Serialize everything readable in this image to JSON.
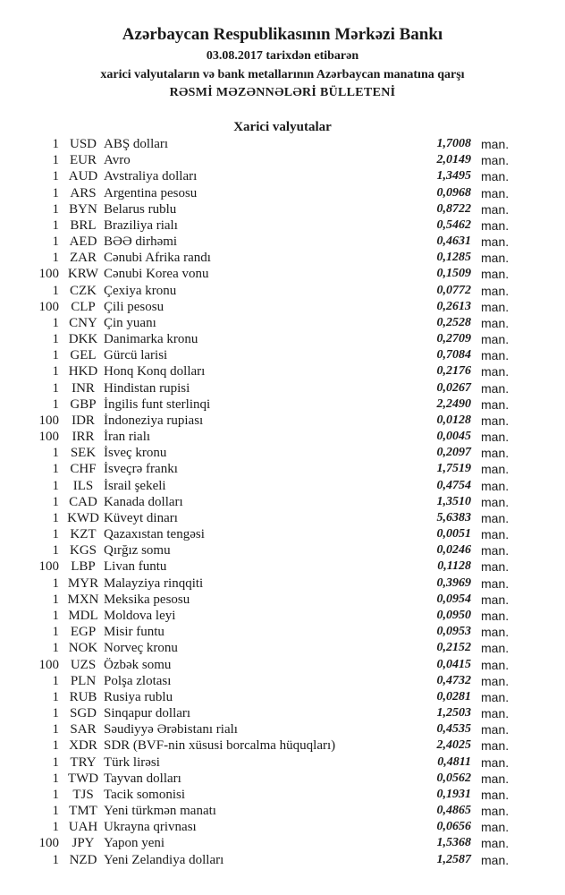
{
  "header": {
    "title": "Azərbaycan Respublikasının Mərkəzi Bankı",
    "date_line": "03.08.2017 tarixdən etibarən",
    "subtitle": "xarici valyutaların və bank metallarının Azərbaycan manatına qarşı",
    "bulletin": "RƏSMİ MƏZƏNNƏLƏRİ BÜLLETENİ"
  },
  "section_title": "Xarici valyutalar",
  "unit": "man.",
  "rows": [
    {
      "amount": "1",
      "code": "USD",
      "name": "ABŞ dolları",
      "rate": "1,7008"
    },
    {
      "amount": "1",
      "code": "EUR",
      "name": "Avro",
      "rate": "2,0149"
    },
    {
      "amount": "1",
      "code": "AUD",
      "name": "Avstraliya dolları",
      "rate": "1,3495"
    },
    {
      "amount": "1",
      "code": "ARS",
      "name": "Argentina pesosu",
      "rate": "0,0968"
    },
    {
      "amount": "1",
      "code": "BYN",
      "name": "Belarus rublu",
      "rate": "0,8722"
    },
    {
      "amount": "1",
      "code": "BRL",
      "name": "Braziliya rialı",
      "rate": "0,5462"
    },
    {
      "amount": "1",
      "code": "AED",
      "name": "BƏƏ dirhəmi",
      "rate": "0,4631"
    },
    {
      "amount": "1",
      "code": "ZAR",
      "name": "Cənubi Afrika randı",
      "rate": "0,1285"
    },
    {
      "amount": "100",
      "code": "KRW",
      "name": "Cənubi Korea vonu",
      "rate": "0,1509"
    },
    {
      "amount": "1",
      "code": "CZK",
      "name": "Çexiya kronu",
      "rate": "0,0772"
    },
    {
      "amount": "100",
      "code": "CLP",
      "name": "Çili pesosu",
      "rate": "0,2613"
    },
    {
      "amount": "1",
      "code": "CNY",
      "name": "Çin yuanı",
      "rate": "0,2528"
    },
    {
      "amount": "1",
      "code": "DKK",
      "name": "Danimarka kronu",
      "rate": "0,2709"
    },
    {
      "amount": "1",
      "code": "GEL",
      "name": "Gürcü larisi",
      "rate": "0,7084"
    },
    {
      "amount": "1",
      "code": "HKD",
      "name": "Honq Konq dolları",
      "rate": "0,2176"
    },
    {
      "amount": "1",
      "code": "INR",
      "name": "Hindistan rupisi",
      "rate": "0,0267"
    },
    {
      "amount": "1",
      "code": "GBP",
      "name": "İngilis funt sterlinqi",
      "rate": "2,2490"
    },
    {
      "amount": "100",
      "code": "IDR",
      "name": "İndoneziya rupiası",
      "rate": "0,0128"
    },
    {
      "amount": "100",
      "code": "IRR",
      "name": "İran rialı",
      "rate": "0,0045"
    },
    {
      "amount": "1",
      "code": "SEK",
      "name": "İsveç kronu",
      "rate": "0,2097"
    },
    {
      "amount": "1",
      "code": "CHF",
      "name": "İsveçrə frankı",
      "rate": "1,7519"
    },
    {
      "amount": "1",
      "code": "ILS",
      "name": "İsrail şekeli",
      "rate": "0,4754"
    },
    {
      "amount": "1",
      "code": "CAD",
      "name": "Kanada dolları",
      "rate": "1,3510"
    },
    {
      "amount": "1",
      "code": "KWD",
      "name": "Küveyt dinarı",
      "rate": "5,6383"
    },
    {
      "amount": "1",
      "code": "KZT",
      "name": "Qazaxıstan tengəsi",
      "rate": "0,0051"
    },
    {
      "amount": "1",
      "code": "KGS",
      "name": "Qırğız somu",
      "rate": "0,0246"
    },
    {
      "amount": "100",
      "code": "LBP",
      "name": "Livan funtu",
      "rate": "0,1128"
    },
    {
      "amount": "1",
      "code": "MYR",
      "name": "Malayziya rinqqiti",
      "rate": "0,3969"
    },
    {
      "amount": "1",
      "code": "MXN",
      "name": "Meksika pesosu",
      "rate": "0,0954"
    },
    {
      "amount": "1",
      "code": "MDL",
      "name": "Moldova leyi",
      "rate": "0,0950"
    },
    {
      "amount": "1",
      "code": "EGP",
      "name": "Misir funtu",
      "rate": "0,0953"
    },
    {
      "amount": "1",
      "code": "NOK",
      "name": "Norveç kronu",
      "rate": "0,2152"
    },
    {
      "amount": "100",
      "code": "UZS",
      "name": "Özbək somu",
      "rate": "0,0415"
    },
    {
      "amount": "1",
      "code": "PLN",
      "name": "Polşa zlotası",
      "rate": "0,4732"
    },
    {
      "amount": "1",
      "code": "RUB",
      "name": "Rusiya rublu",
      "rate": "0,0281"
    },
    {
      "amount": "1",
      "code": "SGD",
      "name": "Sinqapur dolları",
      "rate": "1,2503"
    },
    {
      "amount": "1",
      "code": "SAR",
      "name": "Səudiyyə Ərəbistanı rialı",
      "rate": "0,4535"
    },
    {
      "amount": "1",
      "code": "XDR",
      "name": "SDR (BVF-nin xüsusi borcalma hüquqları)",
      "rate": "2,4025"
    },
    {
      "amount": "1",
      "code": "TRY",
      "name": "Türk lirəsi",
      "rate": "0,4811"
    },
    {
      "amount": "1",
      "code": "TWD",
      "name": "Tayvan dolları",
      "rate": "0,0562"
    },
    {
      "amount": "1",
      "code": "TJS",
      "name": "Tacik somonisi",
      "rate": "0,1931"
    },
    {
      "amount": "1",
      "code": "TMT",
      "name": "Yeni türkmən manatı",
      "rate": "0,4865"
    },
    {
      "amount": "1",
      "code": "UAH",
      "name": "Ukrayna qrivnası",
      "rate": "0,0656"
    },
    {
      "amount": "100",
      "code": "JPY",
      "name": "Yapon yeni",
      "rate": "1,5368"
    },
    {
      "amount": "1",
      "code": "NZD",
      "name": "Yeni Zelandiya dolları",
      "rate": "1,2587"
    }
  ]
}
